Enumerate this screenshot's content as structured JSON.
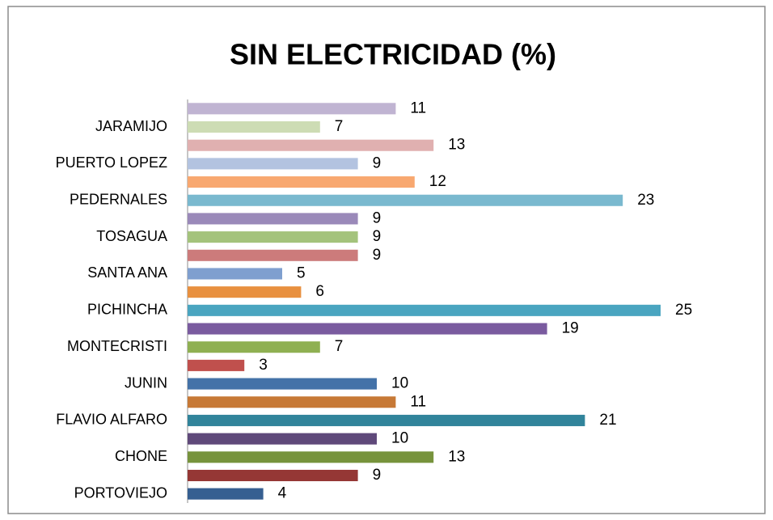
{
  "chart_data": {
    "type": "bar",
    "orientation": "horizontal",
    "title": "SIN ELECTRICIDAD (%)",
    "categories": [
      "PORTOVIEJO",
      null,
      "CHONE",
      null,
      "FLAVIO ALFARO",
      null,
      "JUNIN",
      null,
      "MONTECRISTI",
      null,
      "PICHINCHA",
      null,
      "SANTA ANA",
      null,
      "TOSAGUA",
      null,
      "PEDERNALES",
      null,
      "PUERTO LOPEZ",
      null,
      "JARAMIJO",
      null
    ],
    "values": [
      4,
      9,
      13,
      10,
      21,
      11,
      10,
      3,
      7,
      19,
      25,
      6,
      5,
      9,
      9,
      9,
      23,
      12,
      9,
      13,
      7,
      11
    ],
    "colors": [
      "#365f91",
      "#953735",
      "#77933c",
      "#5f497a",
      "#31849b",
      "#c77936",
      "#4472a8",
      "#c0504d",
      "#8fb052",
      "#7a5b9f",
      "#4aa5c0",
      "#e8903f",
      "#7f9fcf",
      "#cc7b7b",
      "#a4c37c",
      "#9a89b9",
      "#7ab9cf",
      "#f8a870",
      "#b3c3e0",
      "#e0b0b0",
      "#cddcb4",
      "#c0b4d2"
    ],
    "xlim": [
      0,
      25
    ]
  }
}
